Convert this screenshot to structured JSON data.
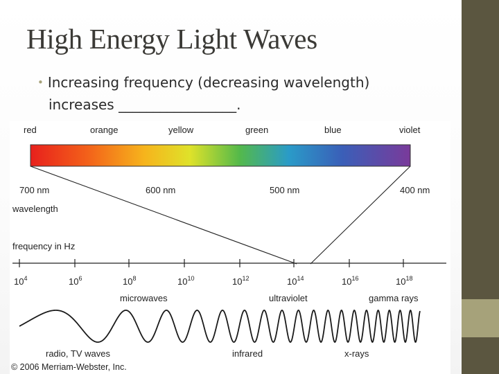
{
  "slide": {
    "title": "High Energy Light Waves",
    "bullet_line1": "Increasing frequency (decreasing wavelength)",
    "bullet_line2": "increases _________________."
  },
  "colors": {
    "sidebar_dark": "#5b5640",
    "sidebar_accent": "#a6a27a",
    "title_text": "#3b3a36"
  },
  "diagram": {
    "color_names": [
      "red",
      "orange",
      "yellow",
      "green",
      "blue",
      "violet"
    ],
    "wavelength_label": "wavelength",
    "wavelength_ticks": [
      "700 nm",
      "600 nm",
      "500 nm",
      "400 nm"
    ],
    "frequency_label": "frequency in Hz",
    "frequency_exponents": [
      "4",
      "6",
      "8",
      "10",
      "12",
      "14",
      "16",
      "18"
    ],
    "frequency_base": "10",
    "bands_upper": [
      "microwaves",
      "ultraviolet",
      "gamma rays"
    ],
    "bands_lower": [
      "radio, TV waves",
      "infrared",
      "x-rays"
    ],
    "copyright": "© 2006 Merriam-Webster, Inc."
  }
}
